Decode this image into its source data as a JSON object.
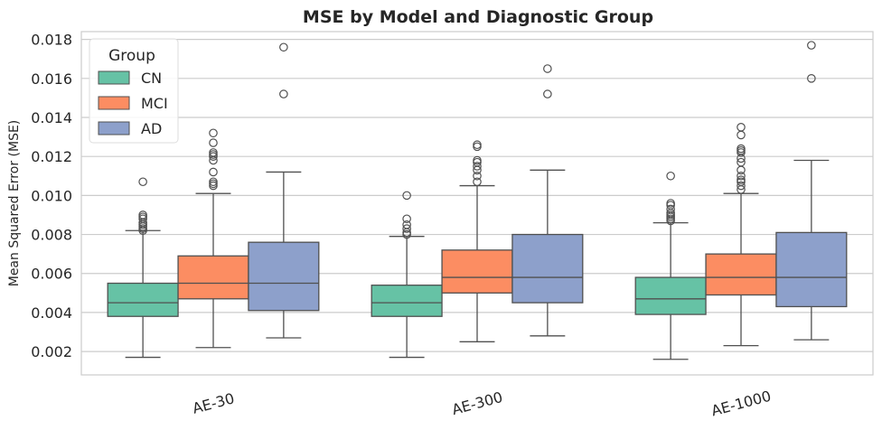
{
  "chart_data": {
    "type": "box",
    "title": "MSE by Model and Diagnostic Group",
    "xlabel": "",
    "ylabel": "Mean Squared Error (MSE)",
    "ylim": [
      0.0008,
      0.0184
    ],
    "y_ticks": [
      "0.002",
      "0.004",
      "0.006",
      "0.008",
      "0.010",
      "0.012",
      "0.014",
      "0.016",
      "0.018"
    ],
    "categories": [
      "AE-30",
      "AE-300",
      "AE-1000"
    ],
    "grid": true,
    "legend": {
      "title": "Group",
      "position": "top-left"
    },
    "series": [
      {
        "name": "CN",
        "color": "#66c2a5",
        "boxes": [
          {
            "whisker_low": 0.0017,
            "q1": 0.0038,
            "median": 0.0045,
            "q3": 0.0055,
            "whisker_high": 0.0082,
            "outliers": [
              0.0082,
              0.0083,
              0.0084,
              0.0085,
              0.0086,
              0.0088,
              0.0089,
              0.009,
              0.0107
            ]
          },
          {
            "whisker_low": 0.0017,
            "q1": 0.0038,
            "median": 0.0045,
            "q3": 0.0054,
            "whisker_high": 0.0079,
            "outliers": [
              0.008,
              0.0081,
              0.0083,
              0.0085,
              0.0088,
              0.01
            ]
          },
          {
            "whisker_low": 0.0016,
            "q1": 0.0039,
            "median": 0.0047,
            "q3": 0.0058,
            "whisker_high": 0.0086,
            "outliers": [
              0.0087,
              0.0088,
              0.0089,
              0.009,
              0.0091,
              0.0093,
              0.0095,
              0.0096,
              0.011
            ]
          }
        ]
      },
      {
        "name": "MCI",
        "color": "#fc8d62",
        "boxes": [
          {
            "whisker_low": 0.0022,
            "q1": 0.0047,
            "median": 0.0055,
            "q3": 0.0069,
            "whisker_high": 0.0101,
            "outliers": [
              0.0105,
              0.0106,
              0.0107,
              0.0112,
              0.0118,
              0.012,
              0.0121,
              0.0122,
              0.0127,
              0.0132
            ]
          },
          {
            "whisker_low": 0.0025,
            "q1": 0.005,
            "median": 0.0058,
            "q3": 0.0072,
            "whisker_high": 0.0105,
            "outliers": [
              0.0107,
              0.011,
              0.0113,
              0.0115,
              0.0117,
              0.0118,
              0.0125,
              0.0126
            ]
          },
          {
            "whisker_low": 0.0023,
            "q1": 0.0049,
            "median": 0.0058,
            "q3": 0.007,
            "whisker_high": 0.0101,
            "outliers": [
              0.0103,
              0.0105,
              0.0107,
              0.0108,
              0.011,
              0.0113,
              0.0117,
              0.0119,
              0.0122,
              0.0123,
              0.0124,
              0.0131,
              0.0135
            ]
          }
        ]
      },
      {
        "name": "AD",
        "color": "#8da0cb",
        "boxes": [
          {
            "whisker_low": 0.0027,
            "q1": 0.0041,
            "median": 0.0055,
            "q3": 0.0076,
            "whisker_high": 0.0112,
            "outliers": [
              0.0152,
              0.0176
            ]
          },
          {
            "whisker_low": 0.0028,
            "q1": 0.0045,
            "median": 0.0058,
            "q3": 0.008,
            "whisker_high": 0.0113,
            "outliers": [
              0.0152,
              0.0165
            ]
          },
          {
            "whisker_low": 0.0026,
            "q1": 0.0043,
            "median": 0.0058,
            "q3": 0.0081,
            "whisker_high": 0.0118,
            "outliers": [
              0.016,
              0.0177
            ]
          }
        ]
      }
    ]
  }
}
